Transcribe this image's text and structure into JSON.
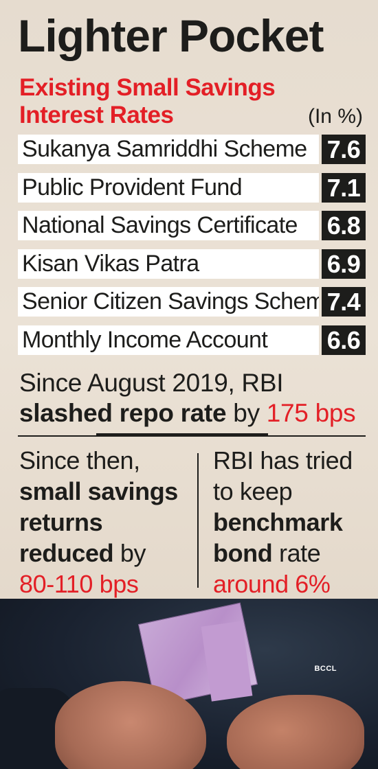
{
  "title": "Lighter Pocket",
  "subtitle_line1": "Existing Small Savings",
  "subtitle_line2": "Interest Rates",
  "unit": "(In %)",
  "rates": [
    {
      "scheme": "Sukanya Samriddhi Scheme",
      "rate": "7.6"
    },
    {
      "scheme": "Public Provident Fund",
      "rate": "7.1"
    },
    {
      "scheme": "National Savings Certificate",
      "rate": "6.8"
    },
    {
      "scheme": "Kisan Vikas Patra",
      "rate": "6.9"
    },
    {
      "scheme": "Senior Citizen Savings Scheme",
      "rate": "7.4"
    },
    {
      "scheme": "Monthly Income Account",
      "rate": "6.6"
    }
  ],
  "repo": {
    "line1": "Since August 2019, RBI",
    "bold": "slashed repo rate",
    "mid": " by ",
    "value": "175 bps"
  },
  "left_col": {
    "line1": "Since then,",
    "bold1": "small savings",
    "bold2": "returns",
    "bold3": "reduced",
    "after_bold3": " by",
    "value": "80-110 bps"
  },
  "right_col": {
    "line1": "RBI has tried",
    "line2": "to keep",
    "bold1": "benchmark",
    "bold2": "bond",
    "after_bold2": " rate",
    "value": "around 6%"
  },
  "photo_credit": "BCCL",
  "colors": {
    "accent_red": "#e31f26",
    "ink": "#1d1d1b",
    "value_box": "#1d1d1b"
  }
}
